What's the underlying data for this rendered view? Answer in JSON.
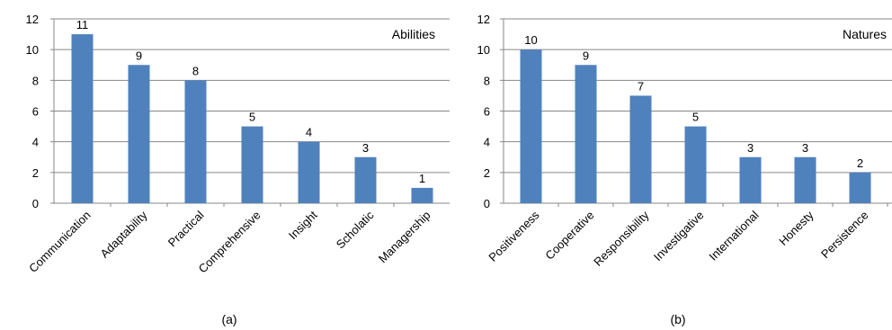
{
  "chart_data": [
    {
      "type": "bar",
      "panel_label": "(a)",
      "legend_label": "Abilities",
      "legend_position": "top-right",
      "categories": [
        "Communication",
        "Adaptability",
        "Practical",
        "Comprehensive",
        "Insight",
        "Scholatic",
        "Managership"
      ],
      "values": [
        11,
        9,
        8,
        5,
        4,
        3,
        1
      ],
      "data_labels": [
        "11",
        "9",
        "8",
        "5",
        "4",
        "3",
        "1"
      ],
      "ylim": [
        0,
        12
      ],
      "yticks": [
        0,
        2,
        4,
        6,
        8,
        10,
        12
      ],
      "grid": true,
      "bar_color": "#4F81BD"
    },
    {
      "type": "bar",
      "panel_label": "(b)",
      "legend_label": "Natures",
      "legend_position": "top-right",
      "categories": [
        "Positiveness",
        "Cooperative",
        "Responsibility",
        "Investigative",
        "International",
        "Honesty",
        "Persistence"
      ],
      "values": [
        10,
        9,
        7,
        5,
        3,
        3,
        2
      ],
      "data_labels": [
        "10",
        "9",
        "7",
        "5",
        "3",
        "3",
        "2"
      ],
      "ylim": [
        0,
        12
      ],
      "yticks": [
        0,
        2,
        4,
        6,
        8,
        10,
        12
      ],
      "grid": true,
      "bar_color": "#4F81BD"
    }
  ]
}
